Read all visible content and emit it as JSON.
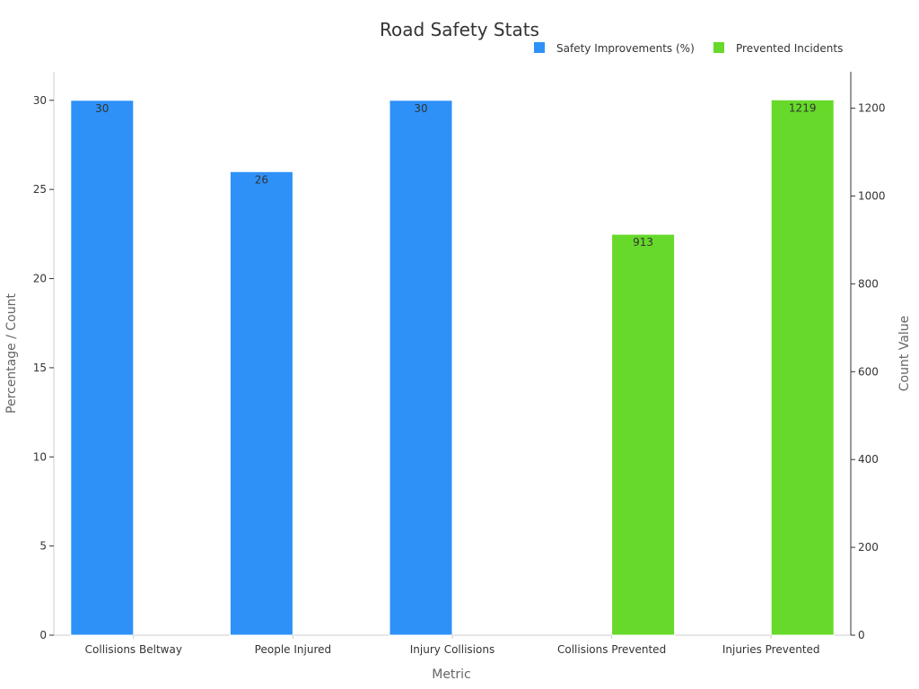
{
  "chart_data": {
    "type": "bar",
    "title": "Road Safety Stats",
    "xlabel": "Metric",
    "ylabel": "Percentage / Count",
    "y2label": "Count Value",
    "categories": [
      "Collisions Beltway",
      "People Injured",
      "Injury Collisions",
      "Collisions Prevented",
      "Injuries Prevented"
    ],
    "ylim": [
      0,
      31.6
    ],
    "y2lim": [
      0,
      1283
    ],
    "yticks": [
      0,
      5,
      10,
      15,
      20,
      25,
      30
    ],
    "y2ticks": [
      0,
      200,
      400,
      600,
      800,
      1000,
      1200
    ],
    "legend_position": "top-right",
    "grid": false,
    "series": [
      {
        "name": "Safety Improvements (%)",
        "axis": "left",
        "color": "#2e91f8",
        "values": [
          30,
          26,
          30,
          null,
          null
        ]
      },
      {
        "name": "Prevented Incidents",
        "axis": "right",
        "color": "#66d92a",
        "values": [
          null,
          null,
          null,
          913,
          1219
        ]
      }
    ]
  }
}
